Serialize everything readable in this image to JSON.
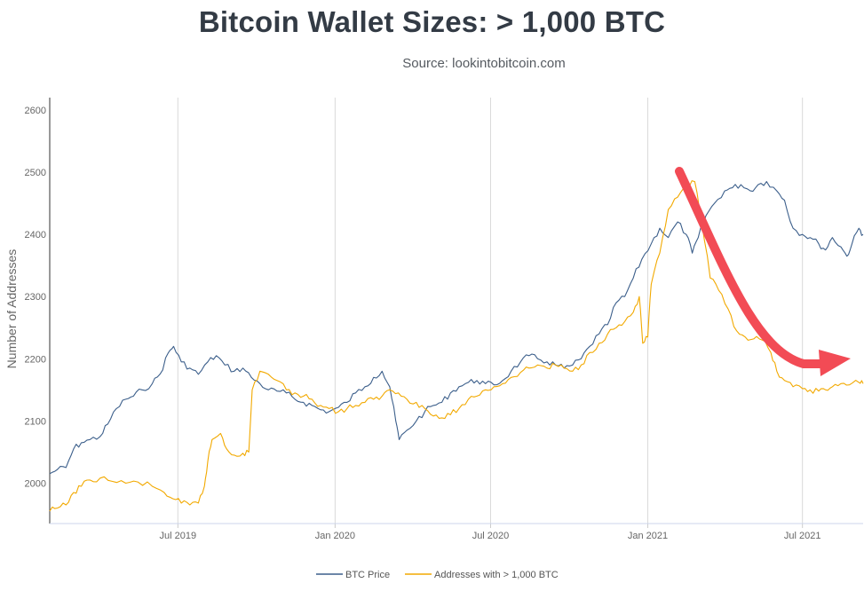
{
  "chart_data": {
    "type": "line",
    "title": "Bitcoin Wallet Sizes: > 1,000 BTC",
    "subtitle": "Source: lookintobitcoin.com",
    "ylabel": "Number of Addresses",
    "xlabel": "",
    "ylim": [
      1935,
      2620
    ],
    "yticks": [
      2000,
      2100,
      2200,
      2300,
      2400,
      2500,
      2600
    ],
    "xlim": [
      "2019-02-01",
      "2021-09-10"
    ],
    "xticks": [
      {
        "date": "2019-07-01",
        "label": "Jul 2019"
      },
      {
        "date": "2020-01-01",
        "label": "Jan 2020"
      },
      {
        "date": "2020-07-01",
        "label": "Jul 2020"
      },
      {
        "date": "2021-01-01",
        "label": "Jan 2021"
      },
      {
        "date": "2021-07-01",
        "label": "Jul 2021"
      }
    ],
    "grid": {
      "vertical": true,
      "horizontal": false
    },
    "legend": {
      "position": "bottom-center"
    },
    "annotations": [
      {
        "type": "arrow",
        "color": "#f24b55",
        "description": "curved downward arrow from the 2021 peak"
      }
    ],
    "series": [
      {
        "name": "BTC Price",
        "color": "#3c5f8b",
        "points": [
          [
            "2019-02-01",
            2015
          ],
          [
            "2019-02-10",
            2022
          ],
          [
            "2019-02-20",
            2025
          ],
          [
            "2019-03-01",
            2055
          ],
          [
            "2019-03-10",
            2065
          ],
          [
            "2019-03-20",
            2070
          ],
          [
            "2019-04-01",
            2075
          ],
          [
            "2019-04-10",
            2095
          ],
          [
            "2019-04-20",
            2120
          ],
          [
            "2019-05-01",
            2135
          ],
          [
            "2019-05-10",
            2140
          ],
          [
            "2019-05-20",
            2150
          ],
          [
            "2019-06-01",
            2160
          ],
          [
            "2019-06-10",
            2175
          ],
          [
            "2019-06-20",
            2210
          ],
          [
            "2019-06-26",
            2220
          ],
          [
            "2019-07-05",
            2195
          ],
          [
            "2019-07-15",
            2185
          ],
          [
            "2019-07-25",
            2175
          ],
          [
            "2019-08-05",
            2195
          ],
          [
            "2019-08-15",
            2205
          ],
          [
            "2019-08-25",
            2190
          ],
          [
            "2019-09-05",
            2180
          ],
          [
            "2019-09-15",
            2185
          ],
          [
            "2019-09-25",
            2170
          ],
          [
            "2019-10-05",
            2160
          ],
          [
            "2019-10-15",
            2150
          ],
          [
            "2019-10-25",
            2148
          ],
          [
            "2019-11-05",
            2145
          ],
          [
            "2019-11-15",
            2135
          ],
          [
            "2019-11-25",
            2130
          ],
          [
            "2019-12-05",
            2125
          ],
          [
            "2019-12-15",
            2118
          ],
          [
            "2019-12-25",
            2115
          ],
          [
            "2020-01-05",
            2122
          ],
          [
            "2020-01-15",
            2130
          ],
          [
            "2020-01-25",
            2145
          ],
          [
            "2020-02-05",
            2155
          ],
          [
            "2020-02-15",
            2170
          ],
          [
            "2020-02-25",
            2180
          ],
          [
            "2020-03-05",
            2155
          ],
          [
            "2020-03-12",
            2100
          ],
          [
            "2020-03-16",
            2070
          ],
          [
            "2020-03-25",
            2085
          ],
          [
            "2020-04-05",
            2100
          ],
          [
            "2020-04-15",
            2115
          ],
          [
            "2020-04-25",
            2125
          ],
          [
            "2020-05-05",
            2130
          ],
          [
            "2020-05-15",
            2145
          ],
          [
            "2020-05-25",
            2155
          ],
          [
            "2020-06-05",
            2162
          ],
          [
            "2020-06-15",
            2165
          ],
          [
            "2020-06-25",
            2160
          ],
          [
            "2020-07-05",
            2158
          ],
          [
            "2020-07-15",
            2165
          ],
          [
            "2020-07-25",
            2180
          ],
          [
            "2020-08-05",
            2195
          ],
          [
            "2020-08-15",
            2205
          ],
          [
            "2020-08-25",
            2200
          ],
          [
            "2020-09-05",
            2195
          ],
          [
            "2020-09-15",
            2190
          ],
          [
            "2020-09-25",
            2185
          ],
          [
            "2020-10-05",
            2190
          ],
          [
            "2020-10-15",
            2200
          ],
          [
            "2020-10-25",
            2220
          ],
          [
            "2020-11-05",
            2240
          ],
          [
            "2020-11-15",
            2255
          ],
          [
            "2020-11-25",
            2290
          ],
          [
            "2020-12-05",
            2300
          ],
          [
            "2020-12-15",
            2330
          ],
          [
            "2020-12-25",
            2360
          ],
          [
            "2021-01-05",
            2385
          ],
          [
            "2021-01-15",
            2410
          ],
          [
            "2021-01-25",
            2395
          ],
          [
            "2021-02-05",
            2420
          ],
          [
            "2021-02-15",
            2400
          ],
          [
            "2021-02-22",
            2370
          ],
          [
            "2021-03-01",
            2395
          ],
          [
            "2021-03-10",
            2430
          ],
          [
            "2021-03-20",
            2450
          ],
          [
            "2021-04-01",
            2470
          ],
          [
            "2021-04-10",
            2475
          ],
          [
            "2021-04-20",
            2480
          ],
          [
            "2021-05-01",
            2470
          ],
          [
            "2021-05-10",
            2480
          ],
          [
            "2021-05-20",
            2485
          ],
          [
            "2021-06-01",
            2470
          ],
          [
            "2021-06-10",
            2455
          ],
          [
            "2021-06-20",
            2410
          ],
          [
            "2021-07-01",
            2400
          ],
          [
            "2021-07-10",
            2395
          ],
          [
            "2021-07-20",
            2385
          ],
          [
            "2021-07-28",
            2375
          ],
          [
            "2021-08-05",
            2395
          ],
          [
            "2021-08-15",
            2380
          ],
          [
            "2021-08-22",
            2365
          ],
          [
            "2021-08-28",
            2385
          ],
          [
            "2021-09-05",
            2410
          ],
          [
            "2021-09-10",
            2400
          ]
        ]
      },
      {
        "name": "Addresses with > 1,000 BTC",
        "color": "#f2a900",
        "points": [
          [
            "2019-02-01",
            1955
          ],
          [
            "2019-02-10",
            1960
          ],
          [
            "2019-02-20",
            1965
          ],
          [
            "2019-03-01",
            1985
          ],
          [
            "2019-03-10",
            1995
          ],
          [
            "2019-03-20",
            2005
          ],
          [
            "2019-04-01",
            2008
          ],
          [
            "2019-04-15",
            2003
          ],
          [
            "2019-05-01",
            2000
          ],
          [
            "2019-05-15",
            2002
          ],
          [
            "2019-06-01",
            1995
          ],
          [
            "2019-06-15",
            1985
          ],
          [
            "2019-06-25",
            1975
          ],
          [
            "2019-07-05",
            1968
          ],
          [
            "2019-07-15",
            1965
          ],
          [
            "2019-07-25",
            1968
          ],
          [
            "2019-08-01",
            1995
          ],
          [
            "2019-08-05",
            2035
          ],
          [
            "2019-08-10",
            2070
          ],
          [
            "2019-08-20",
            2080
          ],
          [
            "2019-08-27",
            2055
          ],
          [
            "2019-09-05",
            2045
          ],
          [
            "2019-09-15",
            2048
          ],
          [
            "2019-09-22",
            2050
          ],
          [
            "2019-09-26",
            2150
          ],
          [
            "2019-10-05",
            2180
          ],
          [
            "2019-10-15",
            2175
          ],
          [
            "2019-10-25",
            2165
          ],
          [
            "2019-11-05",
            2150
          ],
          [
            "2019-11-15",
            2145
          ],
          [
            "2019-11-25",
            2140
          ],
          [
            "2019-12-05",
            2135
          ],
          [
            "2019-12-15",
            2125
          ],
          [
            "2019-12-25",
            2120
          ],
          [
            "2020-01-05",
            2115
          ],
          [
            "2020-01-15",
            2120
          ],
          [
            "2020-01-25",
            2125
          ],
          [
            "2020-02-05",
            2130
          ],
          [
            "2020-02-15",
            2135
          ],
          [
            "2020-02-25",
            2140
          ],
          [
            "2020-03-05",
            2150
          ],
          [
            "2020-03-15",
            2145
          ],
          [
            "2020-03-25",
            2135
          ],
          [
            "2020-04-05",
            2130
          ],
          [
            "2020-04-15",
            2120
          ],
          [
            "2020-04-25",
            2108
          ],
          [
            "2020-05-05",
            2105
          ],
          [
            "2020-05-15",
            2110
          ],
          [
            "2020-05-25",
            2120
          ],
          [
            "2020-06-05",
            2135
          ],
          [
            "2020-06-15",
            2140
          ],
          [
            "2020-06-25",
            2150
          ],
          [
            "2020-07-05",
            2155
          ],
          [
            "2020-07-15",
            2160
          ],
          [
            "2020-07-25",
            2170
          ],
          [
            "2020-08-05",
            2178
          ],
          [
            "2020-08-15",
            2185
          ],
          [
            "2020-08-25",
            2190
          ],
          [
            "2020-09-05",
            2185
          ],
          [
            "2020-09-15",
            2190
          ],
          [
            "2020-09-25",
            2185
          ],
          [
            "2020-10-05",
            2180
          ],
          [
            "2020-10-15",
            2190
          ],
          [
            "2020-10-25",
            2210
          ],
          [
            "2020-11-05",
            2225
          ],
          [
            "2020-11-15",
            2240
          ],
          [
            "2020-11-25",
            2250
          ],
          [
            "2020-12-05",
            2260
          ],
          [
            "2020-12-15",
            2275
          ],
          [
            "2020-12-22",
            2300
          ],
          [
            "2020-12-26",
            2225
          ],
          [
            "2021-01-01",
            2235
          ],
          [
            "2021-01-05",
            2320
          ],
          [
            "2021-01-15",
            2370
          ],
          [
            "2021-01-25",
            2440
          ],
          [
            "2021-02-05",
            2460
          ],
          [
            "2021-02-15",
            2475
          ],
          [
            "2021-02-25",
            2485
          ],
          [
            "2021-03-05",
            2420
          ],
          [
            "2021-03-15",
            2330
          ],
          [
            "2021-03-25",
            2310
          ],
          [
            "2021-04-05",
            2280
          ],
          [
            "2021-04-15",
            2245
          ],
          [
            "2021-04-25",
            2235
          ],
          [
            "2021-05-05",
            2232
          ],
          [
            "2021-05-15",
            2230
          ],
          [
            "2021-05-25",
            2210
          ],
          [
            "2021-06-01",
            2180
          ],
          [
            "2021-06-10",
            2165
          ],
          [
            "2021-06-20",
            2155
          ],
          [
            "2021-07-01",
            2152
          ],
          [
            "2021-07-10",
            2150
          ],
          [
            "2021-07-20",
            2148
          ],
          [
            "2021-07-28",
            2150
          ],
          [
            "2021-08-05",
            2155
          ],
          [
            "2021-08-15",
            2160
          ],
          [
            "2021-08-25",
            2158
          ],
          [
            "2021-09-05",
            2162
          ],
          [
            "2021-09-10",
            2160
          ]
        ]
      }
    ]
  }
}
